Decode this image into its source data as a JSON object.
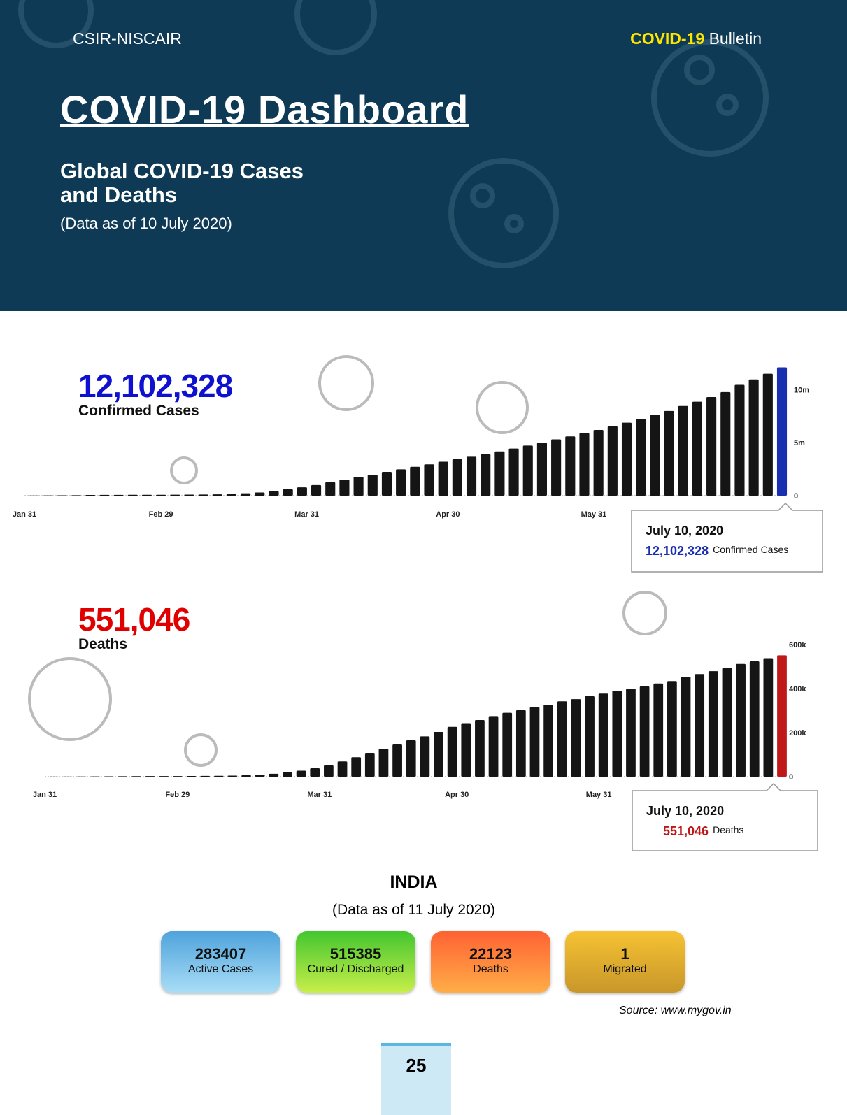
{
  "header": {
    "org": "CSIR-NISCAIR",
    "bulletin_prefix": "COVID-19",
    "bulletin": "Bulletin",
    "title": "COVID-19 Dashboard",
    "subtitle_line1": "Global COVID-19 Cases",
    "subtitle_line2": "and Deaths",
    "note": "(Data as of 10 July 2020)"
  },
  "chart_data": [
    {
      "type": "bar",
      "total": 12102328,
      "total_label": "12,102,328",
      "caption": "Confirmed Cases",
      "x": [
        2,
        5,
        8,
        11,
        14,
        17,
        20,
        23,
        26,
        29,
        32,
        35,
        38,
        41,
        44,
        47,
        50,
        53,
        56,
        59,
        62,
        65,
        68,
        71,
        74,
        77,
        80,
        83,
        86,
        89,
        92,
        95,
        98,
        101,
        104,
        107,
        110,
        113,
        116,
        119,
        122,
        125,
        128,
        131,
        134,
        137,
        140,
        143,
        146,
        149,
        152,
        155,
        158,
        161
      ],
      "values": [
        17000,
        28000,
        37000,
        45000,
        67000,
        73000,
        76000,
        79000,
        82000,
        86000,
        93000,
        98000,
        110000,
        126000,
        167000,
        220000,
        300000,
        420000,
        600000,
        780000,
        1000000,
        1270000,
        1520000,
        1780000,
        1980000,
        2240000,
        2480000,
        2720000,
        2950000,
        3200000,
        3440000,
        3670000,
        3920000,
        4170000,
        4440000,
        4720000,
        5000000,
        5310000,
        5590000,
        5900000,
        6200000,
        6540000,
        6880000,
        7230000,
        7600000,
        7990000,
        8460000,
        8860000,
        9300000,
        9770000,
        10450000,
        10960000,
        11500000,
        12102328
      ],
      "xlim": [
        0,
        161
      ],
      "xticks": [
        {
          "value": 0,
          "label": "Jan 31"
        },
        {
          "value": 29,
          "label": "Feb 29"
        },
        {
          "value": 60,
          "label": "Mar 31"
        },
        {
          "value": 90,
          "label": "Apr 30"
        },
        {
          "value": 121,
          "label": "May 31"
        }
      ],
      "ylim": [
        0,
        12000000
      ],
      "yticks": [
        0,
        {
          "value": 5000000,
          "label": "5m"
        },
        {
          "value": 10000000,
          "label": "10m"
        }
      ],
      "color": "#151515",
      "highlight_color": "#1a2fb0",
      "total_color": "#1010d0",
      "tooltip": {
        "date": "July 10, 2020",
        "value_label": "12,102,328",
        "caption": "Confirmed Cases"
      }
    },
    {
      "type": "bar",
      "total": 551046,
      "total_label": "551,046",
      "caption": "Deaths",
      "x": [
        2,
        5,
        8,
        11,
        14,
        17,
        20,
        23,
        26,
        29,
        32,
        35,
        38,
        41,
        44,
        47,
        50,
        53,
        56,
        59,
        62,
        65,
        68,
        71,
        74,
        77,
        80,
        83,
        86,
        89,
        92,
        95,
        98,
        101,
        104,
        107,
        110,
        113,
        116,
        119,
        122,
        125,
        128,
        131,
        134,
        137,
        140,
        143,
        146,
        149,
        152,
        155,
        158,
        161
      ],
      "values": [
        360,
        560,
        810,
        1110,
        1530,
        1870,
        2240,
        2620,
        2770,
        2930,
        3110,
        3380,
        3830,
        4720,
        6500,
        8900,
        13000,
        19000,
        27000,
        38000,
        51000,
        69000,
        88000,
        108000,
        126000,
        146000,
        165000,
        183000,
        203000,
        226000,
        243000,
        257000,
        275000,
        290000,
        302000,
        316000,
        327000,
        342000,
        352000,
        365000,
        377000,
        390000,
        400000,
        410000,
        423000,
        434000,
        454000,
        466000,
        479000,
        493000,
        512000,
        524000,
        538000,
        551046
      ],
      "xlim": [
        0,
        161
      ],
      "xticks": [
        {
          "value": 0,
          "label": "Jan 31"
        },
        {
          "value": 29,
          "label": "Feb 29"
        },
        {
          "value": 60,
          "label": "Mar 31"
        },
        {
          "value": 90,
          "label": "Apr 30"
        },
        {
          "value": 121,
          "label": "May 31"
        }
      ],
      "ylim": [
        0,
        600000
      ],
      "yticks": [
        0,
        {
          "value": 200000,
          "label": "200k"
        },
        {
          "value": 400000,
          "label": "400k"
        },
        {
          "value": 600000,
          "label": "600k"
        }
      ],
      "color": "#151515",
      "highlight_color": "#c01818",
      "total_color": "#e00000",
      "tooltip": {
        "date": "July 10, 2020",
        "value_label": "551,046",
        "caption": "Deaths"
      }
    }
  ],
  "india": {
    "title": "INDIA",
    "note": "(Data as of 11 July 2020)",
    "cards": [
      {
        "value": 283407,
        "label": "Active Cases"
      },
      {
        "value": 515385,
        "label": "Cured / Discharged"
      },
      {
        "value": 22123,
        "label": "Deaths"
      },
      {
        "value": 1,
        "label": "Migrated"
      }
    ],
    "source": "Source: www.mygov.in"
  },
  "page_number": 25
}
